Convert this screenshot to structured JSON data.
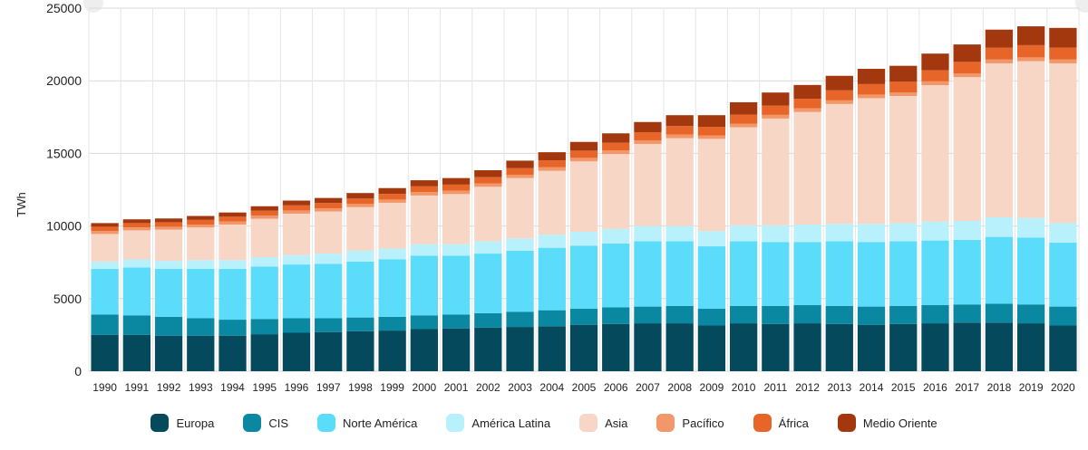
{
  "chart_data": {
    "type": "bar",
    "stacked": true,
    "title": "",
    "xlabel": "",
    "ylabel": "TWh",
    "ylim": [
      0,
      25000
    ],
    "yticks": [
      0,
      5000,
      10000,
      15000,
      20000,
      25000
    ],
    "grid": true,
    "legend_position": "bottom",
    "categories": [
      "1990",
      "1991",
      "1992",
      "1993",
      "1994",
      "1995",
      "1996",
      "1997",
      "1998",
      "1999",
      "2000",
      "2001",
      "2002",
      "2003",
      "2004",
      "2005",
      "2006",
      "2007",
      "2008",
      "2009",
      "2010",
      "2011",
      "2012",
      "2013",
      "2014",
      "2015",
      "2016",
      "2017",
      "2018",
      "2019",
      "2020"
    ],
    "series": [
      {
        "name": "Europa",
        "color": "#054a5c",
        "values": [
          2500,
          2500,
          2450,
          2450,
          2450,
          2550,
          2650,
          2700,
          2750,
          2800,
          2900,
          2950,
          3000,
          3050,
          3100,
          3200,
          3250,
          3300,
          3300,
          3150,
          3300,
          3250,
          3300,
          3250,
          3200,
          3250,
          3300,
          3350,
          3350,
          3300,
          3150
        ]
      },
      {
        "name": "CIS",
        "color": "#0a87a1",
        "values": [
          1400,
          1350,
          1300,
          1200,
          1100,
          1050,
          1000,
          950,
          950,
          950,
          950,
          950,
          1000,
          1050,
          1100,
          1100,
          1150,
          1150,
          1200,
          1150,
          1200,
          1250,
          1250,
          1250,
          1250,
          1250,
          1250,
          1250,
          1300,
          1300,
          1300
        ]
      },
      {
        "name": "Norte América",
        "color": "#5cdcfb",
        "values": [
          3150,
          3300,
          3300,
          3400,
          3500,
          3600,
          3700,
          3750,
          3850,
          3950,
          4100,
          4050,
          4100,
          4200,
          4300,
          4350,
          4400,
          4500,
          4450,
          4300,
          4450,
          4400,
          4350,
          4450,
          4450,
          4450,
          4450,
          4450,
          4600,
          4600,
          4400
        ]
      },
      {
        "name": "América Latina",
        "color": "#b8f1fc",
        "values": [
          500,
          550,
          550,
          600,
          600,
          650,
          650,
          700,
          750,
          750,
          800,
          800,
          850,
          850,
          900,
          950,
          1000,
          1050,
          1050,
          1050,
          1100,
          1150,
          1200,
          1200,
          1250,
          1250,
          1300,
          1300,
          1350,
          1350,
          1350
        ]
      },
      {
        "name": "Asia",
        "color": "#f7d6c5",
        "values": [
          1900,
          2000,
          2150,
          2250,
          2450,
          2650,
          2850,
          2900,
          3000,
          3150,
          3350,
          3450,
          3750,
          4150,
          4400,
          4850,
          5150,
          5650,
          6050,
          6350,
          6750,
          7350,
          7750,
          8250,
          8650,
          8750,
          9400,
          9900,
          10600,
          10800,
          11000
        ]
      },
      {
        "name": "Pacífico",
        "color": "#f2976a",
        "values": [
          200,
          200,
          200,
          200,
          210,
          210,
          220,
          220,
          220,
          220,
          230,
          230,
          230,
          230,
          240,
          240,
          250,
          250,
          250,
          240,
          250,
          250,
          250,
          250,
          250,
          250,
          260,
          260,
          260,
          260,
          260
        ]
      },
      {
        "name": "África",
        "color": "#e8652a",
        "values": [
          300,
          300,
          310,
          320,
          330,
          340,
          350,
          360,
          370,
          390,
          400,
          420,
          430,
          450,
          480,
          500,
          530,
          560,
          580,
          590,
          620,
          640,
          660,
          690,
          720,
          730,
          760,
          790,
          810,
          840,
          830
        ]
      },
      {
        "name": "Medio Oriente",
        "color": "#a3380f",
        "values": [
          250,
          260,
          260,
          270,
          290,
          310,
          330,
          350,
          380,
          400,
          420,
          450,
          480,
          520,
          560,
          600,
          650,
          700,
          750,
          800,
          850,
          900,
          950,
          1000,
          1050,
          1100,
          1150,
          1200,
          1250,
          1300,
          1350
        ]
      }
    ]
  }
}
